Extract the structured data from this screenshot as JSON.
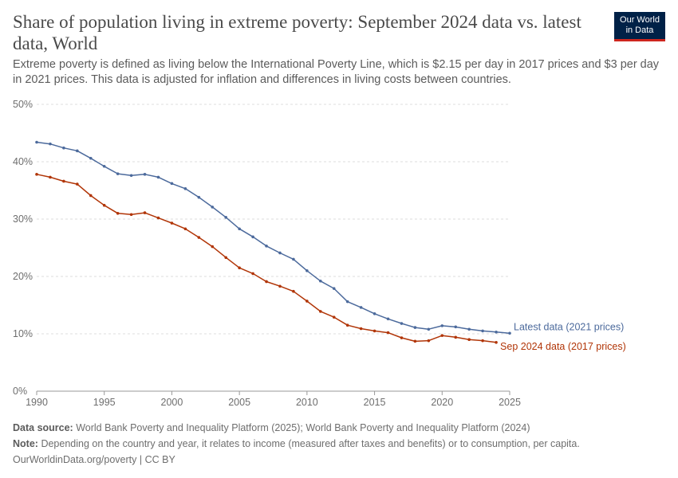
{
  "header": {
    "title": "Share of population living in extreme poverty: September 2024 data vs. latest data, World",
    "subtitle": "Extreme poverty is defined as living below the International Poverty Line, which is $2.15 per day in 2017 prices and $3 per day in 2021 prices. This data is adjusted for inflation and differences in living costs between countries.",
    "logo_line1": "Our World",
    "logo_line2": "in Data"
  },
  "chart_data": {
    "type": "line",
    "xlim": [
      1990,
      2025
    ],
    "ylim": [
      0,
      50
    ],
    "grid": true,
    "legend_placement": "right (labels at line ends)",
    "y_ticks": [
      "0%",
      "10%",
      "20%",
      "30%",
      "40%",
      "50%"
    ],
    "y_tick_values": [
      0,
      10,
      20,
      30,
      40,
      50
    ],
    "x_ticks": [
      "1990",
      "1995",
      "2000",
      "2005",
      "2010",
      "2015",
      "2020",
      "2025"
    ],
    "x_tick_values": [
      1990,
      1995,
      2000,
      2005,
      2010,
      2015,
      2020,
      2025
    ],
    "series": [
      {
        "name": "Latest data (2021 prices)",
        "color": "#4c6a9c",
        "x": [
          1990,
          1991,
          1992,
          1993,
          1994,
          1995,
          1996,
          1997,
          1998,
          1999,
          2000,
          2001,
          2002,
          2003,
          2004,
          2005,
          2006,
          2007,
          2008,
          2009,
          2010,
          2011,
          2012,
          2013,
          2014,
          2015,
          2016,
          2017,
          2018,
          2019,
          2020,
          2021,
          2022,
          2023,
          2024,
          2025
        ],
        "y": [
          43.4,
          43.1,
          42.4,
          41.9,
          40.6,
          39.2,
          37.9,
          37.6,
          37.8,
          37.3,
          36.2,
          35.3,
          33.8,
          32.1,
          30.3,
          28.3,
          26.9,
          25.3,
          24.1,
          23.0,
          21.0,
          19.2,
          17.9,
          15.6,
          14.6,
          13.5,
          12.6,
          11.8,
          11.1,
          10.8,
          11.4,
          11.2,
          10.8,
          10.5,
          10.3,
          10.1
        ]
      },
      {
        "name": "Sep 2024 data (2017 prices)",
        "color": "#b13507",
        "x": [
          1990,
          1991,
          1992,
          1993,
          1994,
          1995,
          1996,
          1997,
          1998,
          1999,
          2000,
          2001,
          2002,
          2003,
          2004,
          2005,
          2006,
          2007,
          2008,
          2009,
          2010,
          2011,
          2012,
          2013,
          2014,
          2015,
          2016,
          2017,
          2018,
          2019,
          2020,
          2021,
          2022,
          2023,
          2024
        ],
        "y": [
          37.8,
          37.3,
          36.6,
          36.1,
          34.1,
          32.4,
          31.0,
          30.8,
          31.1,
          30.2,
          29.3,
          28.3,
          26.8,
          25.2,
          23.3,
          21.5,
          20.5,
          19.1,
          18.3,
          17.4,
          15.7,
          13.9,
          12.9,
          11.5,
          10.9,
          10.5,
          10.2,
          9.3,
          8.7,
          8.8,
          9.7,
          9.4,
          9.0,
          8.8,
          8.5
        ]
      }
    ]
  },
  "footer": {
    "source_label": "Data source:",
    "source_text": "World Bank Poverty and Inequality Platform (2025); World Bank Poverty and Inequality Platform (2024)",
    "note_label": "Note:",
    "note_text": "Depending on the country and year, it relates to income (measured after taxes and benefits) or to consumption, per capita.",
    "credit": "OurWorldinData.org/poverty | CC BY"
  }
}
